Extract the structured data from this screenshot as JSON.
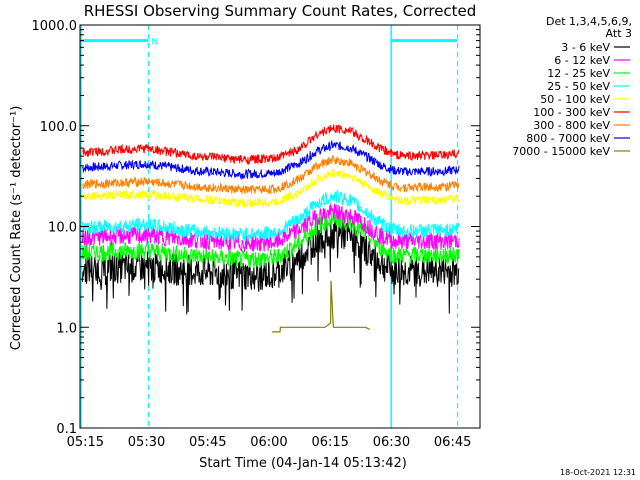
{
  "chart_data": {
    "type": "line",
    "title": "RHESSI Observing Summary Count Rates, Corrected",
    "xlabel": "Start Time (04-Jan-14 05:13:42)",
    "ylabel": "Corrected Count Rate (s⁻¹ detector⁻¹)",
    "y_scale": "log",
    "ylim": [
      0.1,
      1000
    ],
    "x_unit": "minutes since 05:13:42",
    "xlim": [
      0,
      98
    ],
    "x_ticks": [
      {
        "label": "05:15",
        "x": 1.3
      },
      {
        "label": "05:30",
        "x": 16.3
      },
      {
        "label": "05:45",
        "x": 31.3
      },
      {
        "label": "06:00",
        "x": 46.3
      },
      {
        "label": "06:15",
        "x": 61.3
      },
      {
        "label": "06:30",
        "x": 76.3
      },
      {
        "label": "06:45",
        "x": 91.3
      }
    ],
    "y_ticks": [
      {
        "label": "0.1",
        "v": 0.1
      },
      {
        "label": "1.0",
        "v": 1
      },
      {
        "label": "10.0",
        "v": 10
      },
      {
        "label": "100.0",
        "v": 100
      },
      {
        "label": "1000.0",
        "v": 1000
      }
    ],
    "legend_header": [
      "Det 1,3,4,5,6,9,",
      "Att 3"
    ],
    "legend_position": "right",
    "series": [
      {
        "name": "3 - 6 keV",
        "color": "#000000",
        "x": [
          0,
          16,
          28,
          40,
          48,
          54,
          58,
          62,
          66,
          70,
          74,
          77,
          80,
          90,
          93
        ],
        "y": [
          3.8,
          4.0,
          3.6,
          3.3,
          3.4,
          5.0,
          7.5,
          8.8,
          8.0,
          6.0,
          4.2,
          3.6,
          3.6,
          3.6,
          3.6
        ]
      },
      {
        "name": "6 - 12 keV",
        "color": "#ff00ff",
        "x": [
          0,
          16,
          28,
          40,
          48,
          54,
          58,
          62,
          66,
          70,
          74,
          77,
          80,
          90,
          93
        ],
        "y": [
          7.8,
          8.2,
          7.4,
          6.8,
          7.0,
          9.5,
          12.5,
          14.0,
          13.0,
          10.5,
          8.0,
          7.2,
          7.2,
          7.2,
          7.4
        ]
      },
      {
        "name": "12 - 25 keV",
        "color": "#00ff00",
        "x": [
          0,
          16,
          28,
          40,
          48,
          54,
          58,
          62,
          66,
          70,
          74,
          77,
          80,
          90,
          93
        ],
        "y": [
          5.5,
          5.8,
          5.1,
          4.7,
          4.9,
          7.0,
          10.0,
          12.0,
          11.0,
          8.5,
          6.0,
          5.2,
          5.2,
          5.2,
          5.4
        ]
      },
      {
        "name": "25 - 50 keV",
        "color": "#00ffff",
        "x": [
          0,
          16,
          28,
          40,
          48,
          54,
          58,
          62,
          66,
          70,
          74,
          77,
          80,
          90,
          93
        ],
        "y": [
          9.5,
          10.5,
          9.0,
          8.3,
          8.7,
          12.0,
          17.0,
          20.0,
          18.5,
          14.0,
          10.5,
          9.2,
          9.0,
          9.2,
          9.6
        ]
      },
      {
        "name": "50 - 100 keV",
        "color": "#ffff00",
        "x": [
          0,
          16,
          28,
          40,
          48,
          54,
          58,
          62,
          66,
          70,
          74,
          77,
          80,
          90,
          93
        ],
        "y": [
          20,
          21,
          19,
          17,
          17.5,
          22,
          29,
          34,
          32,
          26,
          21,
          19,
          18,
          18.5,
          19
        ]
      },
      {
        "name": "100 - 300 keV",
        "color": "#ff0000",
        "x": [
          0,
          16,
          28,
          40,
          48,
          54,
          58,
          62,
          66,
          70,
          74,
          77,
          80,
          90,
          93
        ],
        "y": [
          54,
          60,
          50,
          46,
          47,
          60,
          82,
          95,
          90,
          72,
          58,
          52,
          50,
          51,
          54
        ]
      },
      {
        "name": "300 - 800 keV",
        "color": "#ff8000",
        "x": [
          0,
          16,
          28,
          40,
          48,
          54,
          58,
          62,
          66,
          70,
          74,
          77,
          80,
          90,
          93
        ],
        "y": [
          26,
          28,
          25,
          23,
          23.5,
          30,
          40,
          46,
          43,
          35,
          28,
          25,
          24.5,
          25,
          26
        ]
      },
      {
        "name": "800 - 7000 keV",
        "color": "#0000ff",
        "x": [
          0,
          16,
          28,
          40,
          48,
          54,
          58,
          62,
          66,
          70,
          74,
          77,
          80,
          90,
          93
        ],
        "y": [
          38,
          42,
          36,
          33,
          34,
          43,
          56,
          64,
          61,
          50,
          40,
          36,
          35,
          35.5,
          37
        ]
      },
      {
        "name": "7000 - 15000 keV",
        "color": "#808000",
        "x": [
          47,
          49,
          49.1,
          60,
          61.4,
          61.5,
          62,
          62.1,
          64,
          70,
          71
        ],
        "y": [
          0.9,
          0.9,
          1.0,
          1.0,
          1.1,
          2.9,
          1.1,
          1.0,
          1.0,
          1.0,
          0.95
        ]
      }
    ],
    "annotations": [
      {
        "label": "N",
        "x": 17.0,
        "v": 700
      },
      {
        "label": "",
        "kind": "night-bar",
        "x": [
          0,
          16.8
        ],
        "v": 700
      },
      {
        "label": "",
        "kind": "night-bar",
        "x": [
          76,
          92.5
        ],
        "v": 700
      },
      {
        "label": "",
        "kind": "boundary-solid",
        "x": 0
      },
      {
        "label": "",
        "kind": "boundary-dashed",
        "x": 16.8
      },
      {
        "label": "",
        "kind": "boundary-solid",
        "x": 76
      },
      {
        "label": "",
        "kind": "boundary-dashed",
        "x": 92.5
      }
    ],
    "grid": false,
    "timestamp": "18-Oct-2021 12:31"
  }
}
